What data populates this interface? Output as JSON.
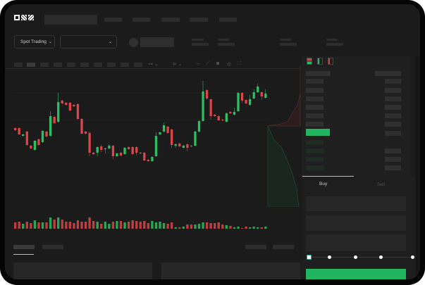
{
  "header": {
    "logo": "OKX"
  },
  "market_selector": {
    "label": "Spot Trading"
  },
  "order_form": {
    "tabs": [
      "Buy",
      "Sell"
    ],
    "active_tab": "Buy",
    "slider_percent": 0
  },
  "colors": {
    "up": "#2dbd63",
    "down": "#d8454a",
    "background": "#1b1b1b",
    "panel": "#1f1f1f",
    "accent": "#22b560"
  },
  "icons": [
    "chevron-down-icon",
    "line-chart-icon",
    "ruler-icon",
    "camera-icon",
    "gear-icon",
    "fullscreen-icon",
    "order-book-both-icon",
    "order-book-bids-icon",
    "order-book-asks-icon"
  ],
  "chart_data": {
    "type": "candlestick",
    "candles": [
      [
        58,
        55,
        59,
        54
      ],
      [
        58,
        49,
        59,
        48
      ],
      [
        47,
        49,
        50,
        46
      ],
      [
        53,
        34,
        54,
        33
      ],
      [
        33,
        29,
        34,
        28
      ],
      [
        27,
        40,
        41,
        26
      ],
      [
        42,
        34,
        43,
        33
      ],
      [
        38,
        54,
        55,
        37
      ],
      [
        53,
        46,
        54,
        45
      ],
      [
        47,
        75,
        82,
        46
      ],
      [
        74,
        65,
        75,
        64
      ],
      [
        67,
        95,
        108,
        66
      ],
      [
        97,
        93,
        98,
        92
      ],
      [
        94,
        91,
        95,
        90
      ],
      [
        94,
        83,
        95,
        82
      ],
      [
        91,
        89,
        92,
        88
      ],
      [
        92,
        71,
        93,
        70
      ],
      [
        71,
        50,
        72,
        49
      ],
      [
        53,
        50,
        54,
        49
      ],
      [
        51,
        23,
        52,
        18
      ],
      [
        23,
        21,
        24,
        20
      ],
      [
        23,
        31,
        32,
        18
      ],
      [
        32,
        27,
        34,
        24
      ],
      [
        28,
        29,
        30,
        22
      ],
      [
        29,
        33,
        35,
        28
      ],
      [
        33,
        18,
        34,
        14
      ],
      [
        18,
        22,
        23,
        17
      ],
      [
        23,
        19,
        24,
        18
      ],
      [
        21,
        30,
        31,
        20
      ],
      [
        31,
        28,
        32,
        27
      ],
      [
        31,
        21,
        32,
        20
      ],
      [
        31,
        23,
        32,
        19
      ],
      [
        23,
        22,
        24,
        21
      ],
      [
        23,
        12,
        24,
        11
      ],
      [
        13,
        11,
        14,
        10
      ],
      [
        11,
        17,
        18,
        10
      ],
      [
        18,
        47,
        52,
        17
      ],
      [
        49,
        52,
        53,
        48
      ],
      [
        53,
        62,
        66,
        52
      ],
      [
        60,
        51,
        61,
        50
      ],
      [
        56,
        34,
        57,
        30
      ],
      [
        33,
        35,
        36,
        30
      ],
      [
        36,
        32,
        37,
        31
      ],
      [
        30,
        33,
        34,
        29
      ],
      [
        35,
        30,
        36,
        25
      ],
      [
        33,
        32,
        34,
        31
      ],
      [
        33,
        53,
        54,
        32
      ],
      [
        53,
        68,
        69,
        52
      ],
      [
        68,
        110,
        125,
        67
      ],
      [
        112,
        100,
        113,
        98
      ],
      [
        99,
        75,
        100,
        70
      ],
      [
        77,
        75,
        78,
        74
      ],
      [
        75,
        69,
        76,
        68
      ],
      [
        70,
        69,
        71,
        68
      ],
      [
        67,
        79,
        80,
        66
      ],
      [
        81,
        79,
        82,
        78
      ],
      [
        77,
        81,
        87,
        76
      ],
      [
        82,
        108,
        109,
        81
      ],
      [
        108,
        97,
        109,
        94
      ],
      [
        98,
        93,
        99,
        92
      ],
      [
        91,
        99,
        105,
        90
      ],
      [
        100,
        109,
        113,
        99
      ],
      [
        109,
        117,
        121,
        108
      ],
      [
        109,
        103,
        110,
        98
      ],
      [
        101,
        107,
        113,
        100
      ]
    ],
    "volume": [
      9,
      10,
      7,
      10,
      8,
      12,
      9,
      9,
      9,
      16,
      13,
      16,
      13,
      10,
      10,
      8,
      12,
      10,
      10,
      16,
      11,
      10,
      7,
      10,
      7,
      10,
      11,
      11,
      9,
      10,
      12,
      11,
      10,
      11,
      8,
      11,
      9,
      10,
      8,
      7,
      9,
      2,
      2,
      3,
      6,
      6,
      6,
      7,
      9,
      9,
      8,
      8,
      9,
      6,
      5,
      4,
      2,
      3,
      1,
      3,
      2,
      3,
      2,
      2,
      3
    ]
  }
}
